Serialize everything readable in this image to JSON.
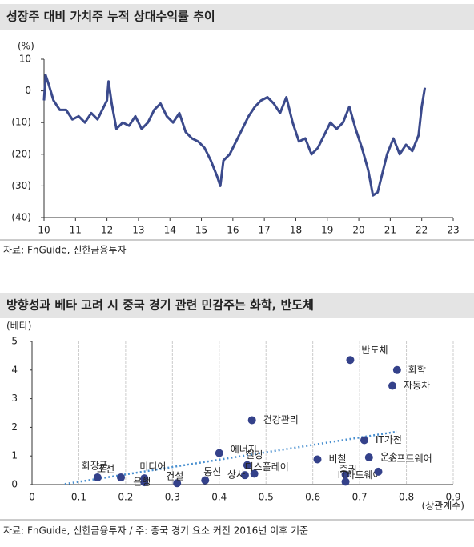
{
  "chart_data": [
    {
      "type": "line",
      "title": "성장주 대비 가치주 누적 상대수익률 추이",
      "y_unit": "(%)",
      "source": "자료: FnGuide, 신한금융투자",
      "x": [
        10.0,
        10.05,
        10.15,
        10.3,
        10.5,
        10.7,
        10.9,
        11.1,
        11.3,
        11.5,
        11.7,
        11.9,
        12.0,
        12.05,
        12.15,
        12.3,
        12.5,
        12.7,
        12.9,
        13.1,
        13.3,
        13.5,
        13.7,
        13.9,
        14.1,
        14.3,
        14.5,
        14.7,
        14.9,
        15.1,
        15.3,
        15.5,
        15.6,
        15.7,
        15.9,
        16.1,
        16.3,
        16.5,
        16.7,
        16.9,
        17.1,
        17.3,
        17.5,
        17.7,
        17.9,
        18.1,
        18.3,
        18.5,
        18.7,
        18.9,
        19.1,
        19.3,
        19.5,
        19.7,
        19.9,
        20.1,
        20.3,
        20.45,
        20.6,
        20.75,
        20.9,
        21.1,
        21.3,
        21.5,
        21.7,
        21.9,
        22.0,
        22.1
      ],
      "series": [
        {
          "color": "#3b4a8c",
          "values": [
            -3,
            5,
            2,
            -3,
            -6,
            -6,
            -9,
            -8,
            -10,
            -7,
            -9,
            -5,
            -3,
            3,
            -4,
            -12,
            -10,
            -11,
            -8,
            -12,
            -10,
            -6,
            -4,
            -8,
            -10,
            -7,
            -13,
            -15,
            -16,
            -18,
            -22,
            -27,
            -30,
            -22,
            -20,
            -16,
            -12,
            -8,
            -5,
            -3,
            -2,
            -4,
            -7,
            -2,
            -10,
            -16,
            -15,
            -20,
            -18,
            -14,
            -10,
            -12,
            -10,
            -5,
            -12,
            -18,
            -25,
            -33,
            -32,
            -26,
            -20,
            -15,
            -20,
            -17,
            -19,
            -14,
            -5,
            1
          ]
        }
      ],
      "xlim": [
        10,
        23
      ],
      "xticks": [
        10,
        11,
        12,
        13,
        14,
        15,
        16,
        17,
        18,
        19,
        20,
        21,
        22,
        23
      ],
      "ylim": [
        -40,
        10
      ],
      "yticks": [
        {
          "value": 10,
          "label": "10"
        },
        0,
        {
          "value": -10,
          "label": "(10)"
        },
        {
          "value": -20,
          "label": "(20)"
        },
        {
          "value": -30,
          "label": "(30)"
        },
        {
          "value": -40,
          "label": "(40)"
        }
      ]
    },
    {
      "type": "scatter",
      "title": "방향성과 베타 고려 시 중국 경기 관련 민감주는 화학, 반도체",
      "y_label": "(베타)",
      "x_label": "(상관계수)",
      "source": "자료: FnGuide, 신한금융투자 / 주: 중국 경기 요소 커진 2016년 이후 기준",
      "color": "#34418a",
      "trend_color": "#4a90d0",
      "labels": [
        "반도체",
        "화학",
        "자동차",
        "건강관리",
        "IT가전",
        "에너지",
        "운송",
        "비철",
        "철강",
        "화장품",
        "조선",
        "미디어",
        "은행",
        "건설",
        "통신",
        "상사",
        "디스플레이",
        "증권",
        "IT하드웨어",
        "소프트웨어"
      ],
      "x": [
        0.68,
        0.78,
        0.77,
        0.47,
        0.71,
        0.4,
        0.72,
        0.61,
        0.46,
        0.14,
        0.19,
        0.24,
        0.24,
        0.31,
        0.37,
        0.455,
        0.475,
        0.67,
        0.67,
        0.74
      ],
      "values": [
        4.35,
        4.0,
        3.45,
        2.25,
        1.55,
        1.1,
        0.95,
        0.88,
        0.68,
        0.25,
        0.25,
        0.22,
        0.08,
        0.05,
        0.15,
        0.33,
        0.38,
        0.35,
        0.1,
        0.45
      ],
      "trendline": {
        "x": [
          0.07,
          0.78
        ],
        "y": [
          0.02,
          1.85
        ]
      },
      "xlim": [
        0,
        0.9
      ],
      "xticks": [
        0,
        0.1,
        0.2,
        0.3,
        0.4,
        0.5,
        0.6,
        0.7,
        0.8,
        0.9
      ],
      "ylim": [
        0,
        5
      ],
      "yticks": [
        0,
        1,
        2,
        3,
        4,
        5
      ],
      "grid": true
    }
  ]
}
